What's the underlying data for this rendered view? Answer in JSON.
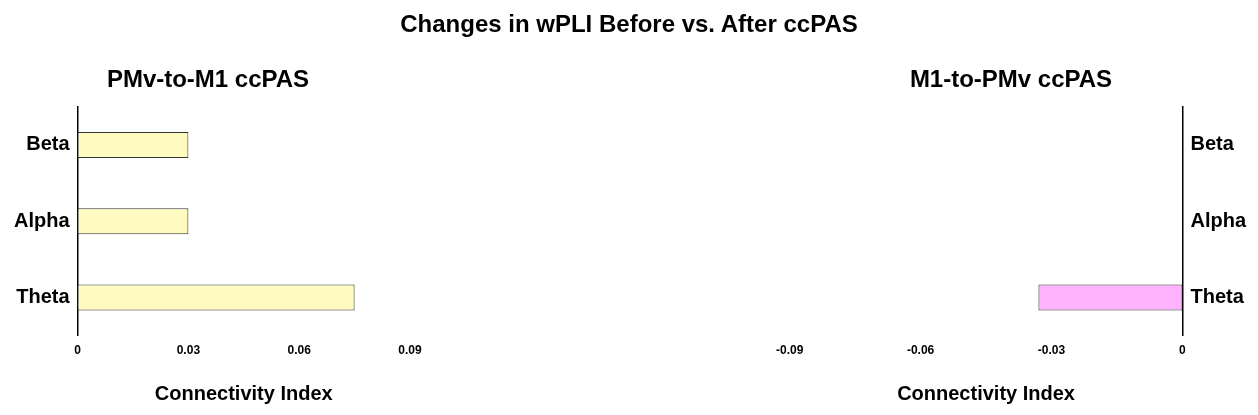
{
  "chart_data": [
    {
      "type": "bar",
      "title": "Changes in wPLI Before vs. After ccPAS",
      "subtitle": "PMv-to-M1 ccPAS",
      "orientation": "horizontal",
      "categories": [
        "Beta",
        "Alpha",
        "Theta"
      ],
      "values": [
        0.03,
        0.03,
        0.075
      ],
      "color": "#fffac0",
      "xlabel": "Connectivity Index",
      "xlim": [
        0,
        0.09
      ],
      "xticks": [
        0,
        0.03,
        0.06,
        0.09
      ]
    },
    {
      "type": "bar",
      "title": "M1-to-PMv ccPAS",
      "orientation": "horizontal",
      "categories": [
        "Beta",
        "Alpha",
        "Theta"
      ],
      "values": [
        0,
        0,
        -0.033
      ],
      "color": "#ffb3ff",
      "xlabel": "Connectivity Index",
      "xlim": [
        -0.09,
        0
      ],
      "xticks": [
        -0.09,
        -0.06,
        -0.03,
        0
      ]
    }
  ]
}
